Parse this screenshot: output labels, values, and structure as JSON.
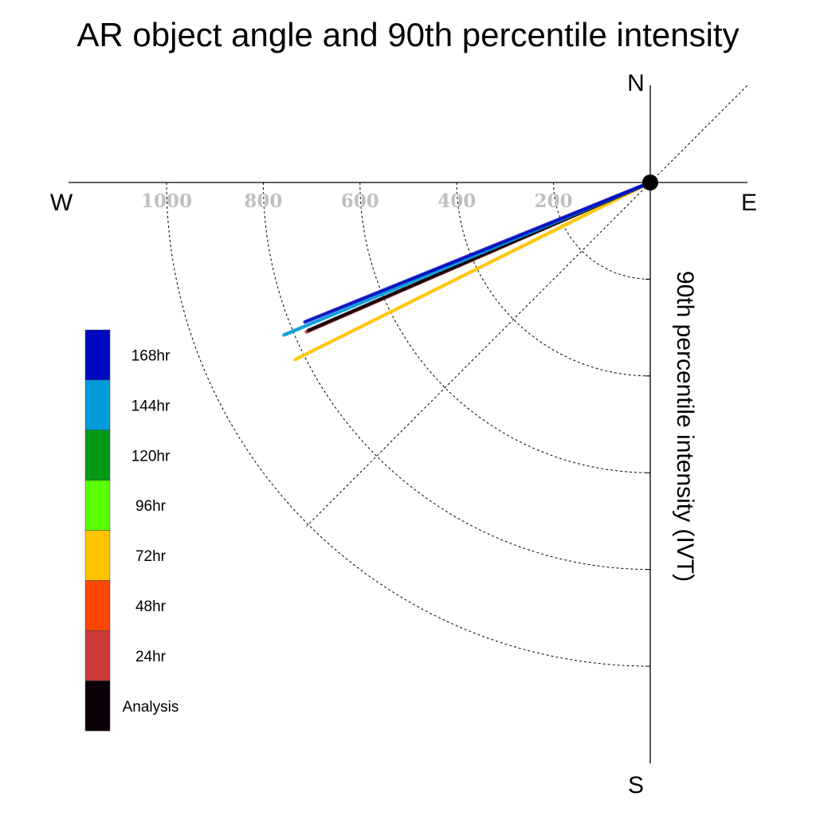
{
  "chart_data": {
    "type": "line",
    "title": "AR object angle and 90th percentile intensity",
    "ylabel": "90th percentile intensity (IVT)",
    "compass": {
      "north": "N",
      "south": "S",
      "west": "W",
      "east": "E"
    },
    "radial_ticks": [
      {
        "value": 200,
        "label": "200"
      },
      {
        "value": 400,
        "label": "400"
      },
      {
        "value": 600,
        "label": "600"
      },
      {
        "value": 800,
        "label": "800"
      },
      {
        "value": 1000,
        "label": "1000"
      }
    ],
    "radial_max": 1200,
    "series": [
      {
        "name": "72hr",
        "color": "#ffc400",
        "intensity": 820,
        "angle_deg_below_west": 26.5
      },
      {
        "name": "24hr",
        "color": "#cc3a3a",
        "intensity": 775,
        "angle_deg_below_west": 23.5
      },
      {
        "name": "Analysis",
        "color": "#0d0008",
        "intensity": 770,
        "angle_deg_below_west": 23.4
      },
      {
        "name": "144hr",
        "color": "#009ad9",
        "intensity": 820,
        "angle_deg_below_west": 22.6
      },
      {
        "name": "168hr",
        "color": "#0008c0",
        "intensity": 770,
        "angle_deg_below_west": 22.0
      }
    ],
    "legend": [
      {
        "label": "168hr",
        "color": "#0008c0"
      },
      {
        "label": "144hr",
        "color": "#009ad9"
      },
      {
        "label": "120hr",
        "color": "#009a14"
      },
      {
        "label": "96hr",
        "color": "#5aff00"
      },
      {
        "label": "72hr",
        "color": "#ffc400"
      },
      {
        "label": "48hr",
        "color": "#ff4600"
      },
      {
        "label": "24hr",
        "color": "#cc3a3a"
      },
      {
        "label": "Analysis",
        "color": "#0d0008"
      }
    ],
    "legend_placement": "left",
    "grid": true
  }
}
